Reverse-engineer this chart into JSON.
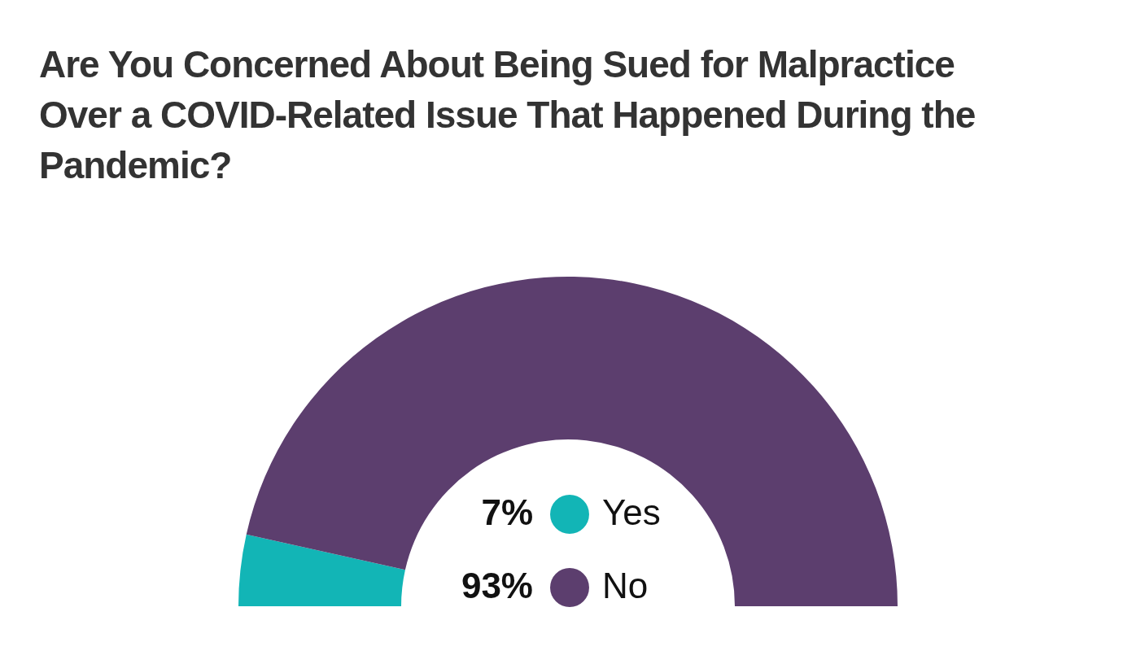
{
  "chart_data": {
    "type": "donut",
    "title": "Are You Concerned About Being Sued for Malpractice Over a COVID-Related Issue That Happened During the Pandemic?",
    "categories": [
      "Yes",
      "No"
    ],
    "values": [
      7,
      93
    ],
    "colors": [
      "#12b5b6",
      "#5c3e6e"
    ],
    "value_labels": [
      "7%",
      "93%"
    ],
    "legend": "bottom"
  }
}
